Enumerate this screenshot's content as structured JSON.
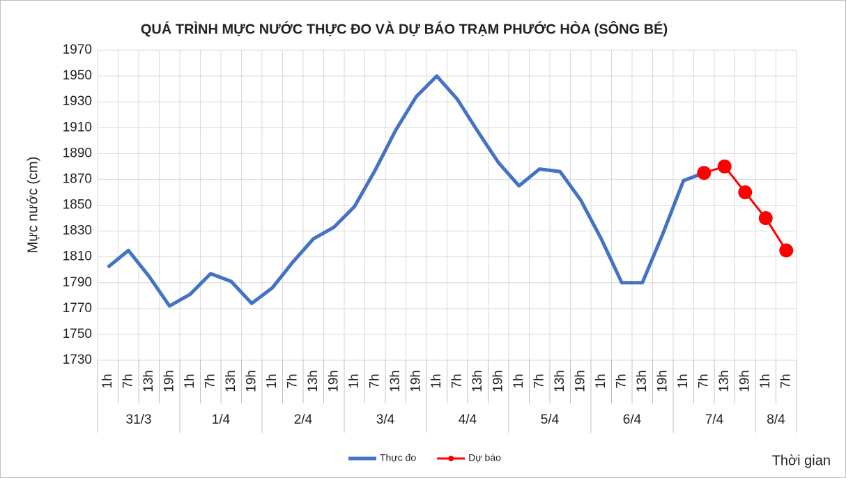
{
  "chart_data": {
    "type": "line",
    "title": "QUÁ TRÌNH MỰC NƯỚC THỰC ĐO VÀ DỰ BÁO TRẠM PHƯỚC HÒA (SÔNG BÉ)",
    "y_label": "Mực nước (cm)",
    "x_label": "Thời gian",
    "categories": [
      "1h",
      "7h",
      "13h",
      "19h",
      "1h",
      "7h",
      "13h",
      "19h",
      "1h",
      "7h",
      "13h",
      "19h",
      "1h",
      "7h",
      "13h",
      "19h",
      "1h",
      "7h",
      "13h",
      "19h",
      "1h",
      "7h",
      "13h",
      "19h",
      "1h",
      "7h",
      "13h",
      "19h",
      "1h",
      "7h",
      "13h",
      "19h",
      "1h",
      "7h"
    ],
    "x_groups": [
      {
        "label": "31/3",
        "span": 4
      },
      {
        "label": "1/4",
        "span": 4
      },
      {
        "label": "2/4",
        "span": 4
      },
      {
        "label": "3/4",
        "span": 4
      },
      {
        "label": "4/4",
        "span": 4
      },
      {
        "label": "5/4",
        "span": 4
      },
      {
        "label": "6/4",
        "span": 4
      },
      {
        "label": "7/4",
        "span": 4
      },
      {
        "label": "8/4",
        "span": 2
      }
    ],
    "series": [
      {
        "name": "Thực đo",
        "color": "#4472c4",
        "marker": false,
        "values": [
          1802,
          1815,
          1795,
          1772,
          1781,
          1797,
          1791,
          1774,
          1786,
          1806,
          1824,
          1833,
          1849,
          1877,
          1908,
          1934,
          1950,
          1932,
          1907,
          1883,
          1865,
          1878,
          1876,
          1854,
          1824,
          1790,
          1790,
          1828,
          1869,
          1875,
          null,
          null,
          null,
          null
        ]
      },
      {
        "name": "Dự báo",
        "color": "#ff0000",
        "marker": true,
        "values": [
          null,
          null,
          null,
          null,
          null,
          null,
          null,
          null,
          null,
          null,
          null,
          null,
          null,
          null,
          null,
          null,
          null,
          null,
          null,
          null,
          null,
          null,
          null,
          null,
          null,
          null,
          null,
          null,
          null,
          1875,
          1880,
          1860,
          1840,
          1815
        ]
      }
    ],
    "ylim": [
      1730,
      1970
    ],
    "yticks": [
      1730,
      1750,
      1770,
      1790,
      1810,
      1830,
      1850,
      1870,
      1890,
      1910,
      1930,
      1950,
      1970
    ],
    "grid": true,
    "legend": "bottom"
  }
}
